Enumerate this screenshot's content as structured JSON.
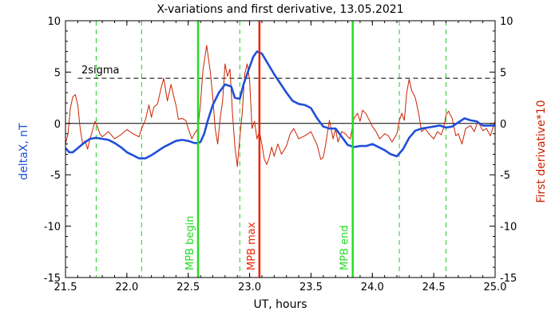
{
  "chart_data": {
    "type": "line",
    "title": "X-variations and first derivative, 13.05.2021",
    "xlabel": "UT, hours",
    "ylabel_left": "deltaX, nT",
    "ylabel_right": "First derivative*10",
    "xlim": [
      21.5,
      25.0
    ],
    "ylim": [
      -15,
      10
    ],
    "xticks": [
      "21.5",
      "22.0",
      "22.5",
      "23.0",
      "23.5",
      "24.0",
      "24.5",
      "25.0"
    ],
    "yticks": [
      "10",
      "5",
      "0",
      "-5",
      "-10",
      "-15"
    ],
    "xtick_values": [
      21.5,
      22.0,
      22.5,
      23.0,
      23.5,
      24.0,
      24.5,
      25.0
    ],
    "ytick_values": [
      10,
      5,
      0,
      -5,
      -10,
      -15
    ],
    "grid": false,
    "colors": {
      "deltaX": "#1f4fd8",
      "derivative": "#cc2200",
      "mpb": "#22dd22",
      "max": "#ee2200",
      "dashed_green": "#22cc22"
    },
    "threshold": {
      "label": "2sigma",
      "value": 4.4
    },
    "dashed_verticals": [
      21.75,
      22.12,
      22.92,
      24.22,
      24.6
    ],
    "vertical_markers": [
      {
        "label": "MPB begin",
        "x": 22.58,
        "color": "#22dd22"
      },
      {
        "label": "MPB max",
        "x": 23.08,
        "color": "#ee2200"
      },
      {
        "label": "MPB end",
        "x": 23.84,
        "color": "#22dd22"
      }
    ],
    "series": [
      {
        "key": "deltaX",
        "x": [
          21.5,
          21.53,
          21.56,
          21.6,
          21.65,
          21.7,
          21.75,
          21.8,
          21.85,
          21.9,
          21.95,
          22.0,
          22.05,
          22.1,
          22.15,
          22.2,
          22.25,
          22.3,
          22.35,
          22.4,
          22.45,
          22.5,
          22.55,
          22.58,
          22.6,
          22.63,
          22.66,
          22.7,
          22.75,
          22.8,
          22.85,
          22.88,
          22.92,
          22.95,
          23.0,
          23.03,
          23.06,
          23.1,
          23.15,
          23.2,
          23.25,
          23.3,
          23.35,
          23.4,
          23.45,
          23.5,
          23.55,
          23.6,
          23.65,
          23.7,
          23.75,
          23.8,
          23.85,
          23.9,
          23.95,
          24.0,
          24.05,
          24.1,
          24.15,
          24.2,
          24.25,
          24.3,
          24.35,
          24.4,
          24.45,
          24.5,
          24.55,
          24.6,
          24.65,
          24.7,
          24.75,
          24.8,
          24.85,
          24.9,
          24.95,
          25.0
        ],
        "values": [
          -2.4,
          -2.8,
          -2.8,
          -2.4,
          -1.9,
          -1.5,
          -1.4,
          -1.5,
          -1.6,
          -1.9,
          -2.3,
          -2.8,
          -3.1,
          -3.4,
          -3.4,
          -3.1,
          -2.7,
          -2.3,
          -2.0,
          -1.7,
          -1.6,
          -1.7,
          -1.9,
          -1.9,
          -1.8,
          -1.0,
          0.3,
          1.8,
          3.0,
          3.8,
          3.6,
          2.5,
          2.4,
          3.8,
          5.5,
          6.5,
          7.0,
          6.8,
          5.8,
          4.8,
          3.9,
          3.0,
          2.2,
          1.9,
          1.8,
          1.5,
          0.5,
          -0.3,
          -0.5,
          -0.5,
          -1.3,
          -2.1,
          -2.3,
          -2.2,
          -2.2,
          -2.0,
          -2.3,
          -2.6,
          -3.0,
          -3.2,
          -2.5,
          -1.4,
          -0.7,
          -0.5,
          -0.4,
          -0.3,
          -0.2,
          -0.4,
          -0.3,
          0.1,
          0.5,
          0.3,
          0.2,
          -0.2,
          -0.2,
          -0.2
        ]
      },
      {
        "key": "derivative",
        "x": [
          21.5,
          21.52,
          21.54,
          21.56,
          21.58,
          21.6,
          21.62,
          21.64,
          21.66,
          21.68,
          21.7,
          21.72,
          21.74,
          21.76,
          21.78,
          21.8,
          21.85,
          21.9,
          21.95,
          22.0,
          22.05,
          22.1,
          22.12,
          22.15,
          22.18,
          22.2,
          22.22,
          22.25,
          22.28,
          22.3,
          22.33,
          22.36,
          22.38,
          22.4,
          22.42,
          22.45,
          22.48,
          22.5,
          22.53,
          22.55,
          22.58,
          22.6,
          22.62,
          22.65,
          22.68,
          22.7,
          22.72,
          22.74,
          22.76,
          22.78,
          22.8,
          22.82,
          22.84,
          22.86,
          22.88,
          22.9,
          22.92,
          22.94,
          22.96,
          22.98,
          23.0,
          23.02,
          23.04,
          23.06,
          23.08,
          23.1,
          23.12,
          23.14,
          23.16,
          23.18,
          23.2,
          23.23,
          23.26,
          23.3,
          23.33,
          23.36,
          23.4,
          23.45,
          23.5,
          23.55,
          23.58,
          23.6,
          23.62,
          23.65,
          23.68,
          23.7,
          23.72,
          23.75,
          23.78,
          23.8,
          23.82,
          23.85,
          23.88,
          23.9,
          23.92,
          23.95,
          23.98,
          24.0,
          24.03,
          24.06,
          24.1,
          24.13,
          24.16,
          24.2,
          24.22,
          24.24,
          24.26,
          24.28,
          24.3,
          24.32,
          24.35,
          24.38,
          24.4,
          24.43,
          24.46,
          24.5,
          24.53,
          24.56,
          24.58,
          24.6,
          24.62,
          24.65,
          24.68,
          24.7,
          24.73,
          24.76,
          24.8,
          24.83,
          24.86,
          24.9,
          24.93,
          24.96,
          25.0
        ],
        "values": [
          -2.0,
          -1.0,
          1.5,
          2.6,
          2.8,
          1.8,
          -0.5,
          -2.0,
          -1.7,
          -2.5,
          -1.5,
          -0.7,
          0.2,
          -0.3,
          -1.0,
          -1.3,
          -0.8,
          -1.5,
          -1.1,
          -0.6,
          -1.0,
          -1.3,
          -0.5,
          0.3,
          1.8,
          0.6,
          1.6,
          1.9,
          3.5,
          4.4,
          2.2,
          3.8,
          2.7,
          1.8,
          0.4,
          0.5,
          0.3,
          -0.5,
          -1.5,
          -1.0,
          -0.5,
          2.0,
          5.2,
          7.6,
          5.0,
          2.5,
          -0.5,
          -2.0,
          0.5,
          2.2,
          5.8,
          4.6,
          5.3,
          1.0,
          -2.2,
          -4.2,
          -1.4,
          1.0,
          4.8,
          5.8,
          4.2,
          -0.5,
          0.2,
          -1.5,
          -0.8,
          -2.0,
          -3.5,
          -4.0,
          -3.3,
          -2.3,
          -3.2,
          -2.0,
          -3.0,
          -2.2,
          -1.0,
          -0.5,
          -1.5,
          -1.2,
          -0.8,
          -2.1,
          -3.5,
          -3.3,
          -2.0,
          0.3,
          -1.5,
          -0.5,
          -1.8,
          -0.8,
          -1.0,
          -1.3,
          -1.5,
          0.5,
          1.0,
          0.2,
          1.3,
          0.9,
          0.2,
          -0.3,
          -0.8,
          -1.5,
          -1.0,
          -1.2,
          -1.8,
          -1.0,
          0.3,
          1.0,
          0.3,
          3.0,
          4.3,
          3.2,
          2.5,
          0.8,
          -0.8,
          -0.5,
          -1.0,
          -1.5,
          -0.8,
          -1.1,
          -0.5,
          0.8,
          1.2,
          0.5,
          -1.2,
          -1.0,
          -2.0,
          -0.5,
          -0.2,
          -0.8,
          0.2,
          -0.7,
          -0.5,
          -1.2,
          0.2
        ]
      }
    ]
  }
}
